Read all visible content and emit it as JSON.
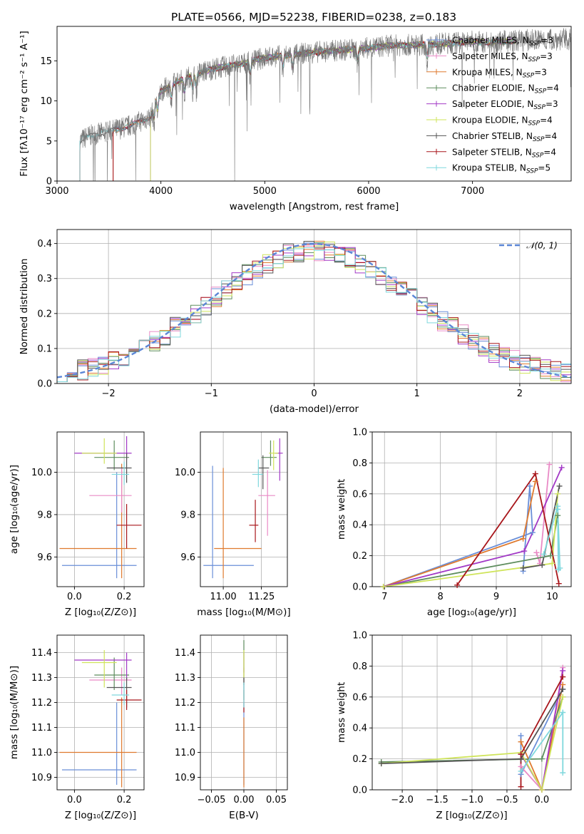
{
  "figure_title": "PLATE=0566, MJD=52238, FIBERID=0238, z=0.183",
  "colors": {
    "Chabrier MILES": "#6a8fd8",
    "Salpeter MILES": "#e98ac6",
    "Kroupa MILES": "#df7a2e",
    "Chabrier ELODIE": "#5e8d5e",
    "Salpeter ELODIE": "#a239c6",
    "Kroupa ELODIE": "#cfe45a",
    "Chabrier STELIB": "#555555",
    "Salpeter STELIB": "#a8161b",
    "Kroupa STELIB": "#7fd8dd",
    "data": "#777777",
    "normal": "#5b86d6"
  },
  "legend": [
    {
      "label": "Chabrier MILES, N",
      "sub": "SSP",
      "tail": "=3",
      "key": "Chabrier MILES"
    },
    {
      "label": "Salpeter MILES, N",
      "sub": "SSP",
      "tail": "=3",
      "key": "Salpeter MILES"
    },
    {
      "label": "Kroupa MILES, N",
      "sub": "SSP",
      "tail": "=3",
      "key": "Kroupa MILES"
    },
    {
      "label": "Chabrier ELODIE, N",
      "sub": "SSP",
      "tail": "=4",
      "key": "Chabrier ELODIE"
    },
    {
      "label": "Salpeter ELODIE, N",
      "sub": "SSP",
      "tail": "=3",
      "key": "Salpeter ELODIE"
    },
    {
      "label": "Kroupa ELODIE, N",
      "sub": "SSP",
      "tail": "=4",
      "key": "Kroupa ELODIE"
    },
    {
      "label": "Chabrier STELIB, N",
      "sub": "SSP",
      "tail": "=4",
      "key": "Chabrier STELIB"
    },
    {
      "label": "Salpeter STELIB, N",
      "sub": "SSP",
      "tail": "=4",
      "key": "Salpeter STELIB"
    },
    {
      "label": "Kroupa STELIB, N",
      "sub": "SSP",
      "tail": "=5",
      "key": "Kroupa STELIB"
    }
  ],
  "chart_data": [
    {
      "type": "line",
      "id": "spectrum",
      "xlabel": "wavelength [Angstrom, rest frame]",
      "ylabel": "Flux [fλ10⁻¹⁷ erg cm⁻² s⁻¹ A⁻¹]",
      "xlim": [
        3000,
        7950
      ],
      "ylim": [
        0,
        19.3
      ],
      "xticks": [
        3000,
        4000,
        5000,
        6000,
        7000
      ],
      "yticks": [
        0,
        5,
        10,
        15
      ],
      "continuum": {
        "x": [
          3220,
          3300,
          3500,
          3700,
          3900,
          3950,
          4000,
          4100,
          4300,
          4500,
          4800,
          5000,
          5200,
          5500,
          5800,
          6000,
          6200,
          6500,
          6800,
          7000,
          7200,
          7400,
          7600,
          7950
        ],
        "y": [
          5.0,
          5.6,
          6.2,
          6.9,
          8.0,
          10.0,
          11.2,
          12.0,
          13.2,
          14.0,
          14.7,
          15.4,
          15.7,
          16.1,
          16.4,
          16.6,
          16.9,
          17.0,
          17.2,
          17.4,
          17.3,
          17.5,
          17.6,
          17.7
        ]
      },
      "model_starts": {
        "Chabrier MILES": 3540,
        "Salpeter MILES": 3540,
        "Kroupa MILES": 3540,
        "Chabrier ELODIE": 3900,
        "Salpeter ELODIE": 3900,
        "Kroupa ELODIE": 3900,
        "Chabrier STELIB": 3220,
        "Salpeter STELIB": 3540,
        "Kroupa STELIB": 3220
      },
      "model_end": 7420
    },
    {
      "type": "step",
      "id": "residuals",
      "xlabel": "(data-model)/error",
      "ylabel": "Normed distribution",
      "xlim": [
        -2.5,
        2.5
      ],
      "ylim": [
        0,
        0.44
      ],
      "xticks": [
        -2,
        -1,
        0,
        1,
        2
      ],
      "xtick_labels": [
        "−2",
        "−1",
        "0",
        "1",
        "2"
      ],
      "yticks": [
        0.0,
        0.1,
        0.2,
        0.3,
        0.4
      ],
      "reference": {
        "label": "𝒩(0, 1)",
        "mean": 0,
        "sigma": 1
      },
      "bin_width": 0.1
    },
    {
      "type": "scatter",
      "id": "age-vs-Z",
      "xlabel": "Z [log₁₀(Z/Z⊙)]",
      "ylabel": "age  [log₁₀(age/yr)]",
      "xlim": [
        -0.07,
        0.28
      ],
      "ylim": [
        9.46,
        10.19
      ],
      "xticks": [
        0.0,
        0.2
      ],
      "yticks": [
        9.6,
        9.8,
        10.0
      ],
      "points": [
        {
          "model": "Chabrier MILES",
          "x": 0.17,
          "xerr": [
            0.22,
            0.08
          ],
          "y": 9.56,
          "yerr": [
            0.06,
            0.44
          ]
        },
        {
          "model": "Kroupa MILES",
          "x": 0.19,
          "xerr": [
            0.25,
            0.06
          ],
          "y": 9.64,
          "yerr": [
            0.14,
            0.4
          ]
        },
        {
          "model": "Salpeter MILES",
          "x": 0.19,
          "xerr": [
            0.13,
            0.04
          ],
          "y": 9.89,
          "yerr": [
            0.08,
            0.13
          ]
        },
        {
          "model": "Chabrier ELODIE",
          "x": 0.16,
          "xerr": [
            0.08,
            0.06
          ],
          "y": 10.07,
          "yerr": [
            0.06,
            0.08
          ]
        },
        {
          "model": "Salpeter ELODIE",
          "x": 0.21,
          "xerr": [
            0.21,
            0.02
          ],
          "y": 10.09,
          "yerr": [
            0.03,
            0.08
          ]
        },
        {
          "model": "Kroupa ELODIE",
          "x": 0.12,
          "xerr": [
            0.09,
            0.05
          ],
          "y": 10.09,
          "yerr": [
            0.05,
            0.07
          ]
        },
        {
          "model": "Chabrier STELIB",
          "x": 0.21,
          "xerr": [
            0.08,
            0.02
          ],
          "y": 10.02,
          "yerr": [
            0.07,
            0.07
          ]
        },
        {
          "model": "Salpeter STELIB",
          "x": 0.21,
          "xerr": [
            0.04,
            0.06
          ],
          "y": 9.75,
          "yerr": [
            0.11,
            0.1
          ]
        },
        {
          "model": "Kroupa STELIB",
          "x": 0.2,
          "xerr": [
            0.05,
            0.02
          ],
          "y": 9.99,
          "yerr": [
            0.05,
            0.06
          ]
        }
      ]
    },
    {
      "type": "scatter",
      "id": "age-vs-mass",
      "xlabel": "mass [log₁₀(M/M⊙)]",
      "ylabel": "",
      "xlim": [
        10.85,
        11.42
      ],
      "ylim": [
        9.46,
        10.19
      ],
      "xticks": [
        11.0,
        11.25
      ],
      "yticks": [
        9.6,
        9.8,
        10.0
      ],
      "points": [
        {
          "model": "Chabrier MILES",
          "x": 10.93,
          "xerr": [
            0.06,
            0.27
          ],
          "y": 9.56,
          "yerr": [
            0.06,
            0.47
          ]
        },
        {
          "model": "Kroupa MILES",
          "x": 11.0,
          "xerr": [
            0.06,
            0.25
          ],
          "y": 9.64,
          "yerr": [
            0.14,
            0.38
          ]
        },
        {
          "model": "Salpeter MILES",
          "x": 11.29,
          "xerr": [
            0.06,
            0.05
          ],
          "y": 9.89,
          "yerr": [
            0.19,
            0.12
          ]
        },
        {
          "model": "Chabrier ELODIE",
          "x": 11.31,
          "xerr": [
            0.06,
            0.04
          ],
          "y": 10.07,
          "yerr": [
            0.04,
            0.08
          ]
        },
        {
          "model": "Salpeter ELODIE",
          "x": 11.37,
          "xerr": [
            0.03,
            0.02
          ],
          "y": 10.09,
          "yerr": [
            0.13,
            0.07
          ]
        },
        {
          "model": "Kroupa ELODIE",
          "x": 11.33,
          "xerr": [
            0.03,
            0.03
          ],
          "y": 10.09,
          "yerr": [
            0.08,
            0.06
          ]
        },
        {
          "model": "Chabrier STELIB",
          "x": 11.26,
          "xerr": [
            0.03,
            0.04
          ],
          "y": 10.02,
          "yerr": [
            0.1,
            0.06
          ]
        },
        {
          "model": "Salpeter STELIB",
          "x": 11.21,
          "xerr": [
            0.04,
            0.02
          ],
          "y": 9.75,
          "yerr": [
            0.08,
            0.12
          ]
        },
        {
          "model": "Kroupa STELIB",
          "x": 11.23,
          "xerr": [
            0.04,
            0.03
          ],
          "y": 9.99,
          "yerr": [
            0.06,
            0.07
          ]
        }
      ]
    },
    {
      "type": "line",
      "id": "weight-vs-age",
      "xlabel": "age  [log₁₀(age/yr)]",
      "ylabel": "mass weight",
      "xlim": [
        6.78,
        10.34
      ],
      "ylim": [
        0,
        1.0
      ],
      "xticks": [
        7,
        8,
        9,
        10
      ],
      "yticks": [
        0.0,
        0.2,
        0.4,
        0.6,
        0.8,
        1.0
      ],
      "series": [
        {
          "model": "Chabrier MILES",
          "x": [
            9.48,
            9.6,
            9.65,
            6.98
          ],
          "y": [
            0.1,
            0.65,
            0.35,
            0.0
          ]
        },
        {
          "model": "Kroupa MILES",
          "x": [
            9.7,
            9.48,
            6.98
          ],
          "y": [
            0.68,
            0.31,
            0.0
          ]
        },
        {
          "model": "Salpeter MILES",
          "x": [
            9.95,
            9.78,
            9.72
          ],
          "y": [
            0.79,
            0.15,
            0.22
          ]
        },
        {
          "model": "Chabrier ELODIE",
          "x": [
            10.1,
            9.97,
            6.98
          ],
          "y": [
            0.46,
            0.2,
            0.0
          ]
        },
        {
          "model": "Salpeter ELODIE",
          "x": [
            10.17,
            9.5,
            6.98
          ],
          "y": [
            0.77,
            0.23,
            0.0
          ]
        },
        {
          "model": "Kroupa ELODIE",
          "x": [
            10.1,
            10.0,
            6.98
          ],
          "y": [
            0.6,
            0.15,
            0.0
          ]
        },
        {
          "model": "Chabrier STELIB",
          "x": [
            9.48,
            9.82,
            10.13
          ],
          "y": [
            0.12,
            0.14,
            0.65
          ]
        },
        {
          "model": "Salpeter STELIB",
          "x": [
            8.3,
            9.7,
            10.12
          ],
          "y": [
            0.01,
            0.73,
            0.02
          ]
        },
        {
          "model": "Kroupa STELIB",
          "x": [
            9.85,
            10.1,
            10.11,
            10.1,
            10.14
          ],
          "y": [
            0.21,
            0.52,
            0.11,
            0.5,
            0.12
          ]
        }
      ]
    },
    {
      "type": "scatter",
      "id": "mass-vs-Z",
      "xlabel": "Z [log₁₀(Z/Z⊙)]",
      "ylabel": "mass [log₁₀(M/M⊙)]",
      "xlim": [
        -0.07,
        0.28
      ],
      "ylim": [
        10.85,
        11.47
      ],
      "xticks": [
        0.0,
        0.2
      ],
      "yticks": [
        10.9,
        11.0,
        11.1,
        11.2,
        11.3,
        11.4
      ],
      "points": [
        {
          "model": "Chabrier MILES",
          "x": 0.17,
          "xerr": [
            0.22,
            0.08
          ],
          "y": 10.93,
          "yerr": [
            0.06,
            0.27
          ]
        },
        {
          "model": "Kroupa MILES",
          "x": 0.19,
          "xerr": [
            0.25,
            0.06
          ],
          "y": 11.0,
          "yerr": [
            0.14,
            0.22
          ]
        },
        {
          "model": "Salpeter MILES",
          "x": 0.19,
          "xerr": [
            0.13,
            0.04
          ],
          "y": 11.29,
          "yerr": [
            0.06,
            0.05
          ]
        },
        {
          "model": "Chabrier ELODIE",
          "x": 0.16,
          "xerr": [
            0.08,
            0.06
          ],
          "y": 11.31,
          "yerr": [
            0.06,
            0.07
          ]
        },
        {
          "model": "Salpeter ELODIE",
          "x": 0.21,
          "xerr": [
            0.21,
            0.02
          ],
          "y": 11.37,
          "yerr": [
            0.08,
            0.03
          ]
        },
        {
          "model": "Kroupa ELODIE",
          "x": 0.12,
          "xerr": [
            0.09,
            0.05
          ],
          "y": 11.36,
          "yerr": [
            0.1,
            0.05
          ]
        },
        {
          "model": "Chabrier STELIB",
          "x": 0.21,
          "xerr": [
            0.08,
            0.02
          ],
          "y": 11.26,
          "yerr": [
            0.08,
            0.04
          ]
        },
        {
          "model": "Salpeter STELIB",
          "x": 0.21,
          "xerr": [
            0.04,
            0.06
          ],
          "y": 11.21,
          "yerr": [
            0.04,
            0.04
          ]
        },
        {
          "model": "Kroupa STELIB",
          "x": 0.2,
          "xerr": [
            0.05,
            0.02
          ],
          "y": 11.23,
          "yerr": [
            0.04,
            0.05
          ]
        }
      ]
    },
    {
      "type": "scatter",
      "id": "mass-vs-ebv",
      "xlabel": "E(B-V)",
      "ylabel": "",
      "xlim": [
        -0.067,
        0.067
      ],
      "ylim": [
        10.85,
        11.47
      ],
      "xticks": [
        -0.05,
        0.0,
        0.05
      ],
      "xtick_labels": [
        "−0.05",
        "0.00",
        "0.05"
      ],
      "yticks": [
        10.9,
        11.0,
        11.1,
        11.2,
        11.3,
        11.4
      ],
      "points": [
        {
          "model": "Chabrier MILES",
          "x": 0.0,
          "y": 10.93,
          "yerr": [
            0.06,
            0.27
          ]
        },
        {
          "model": "Kroupa MILES",
          "x": 0.0,
          "y": 11.0,
          "yerr": [
            0.14,
            0.14
          ]
        },
        {
          "model": "Salpeter MILES",
          "x": 0.0,
          "y": 11.29,
          "yerr": [
            0.04,
            0.05
          ]
        },
        {
          "model": "Chabrier ELODIE",
          "x": 0.0,
          "y": 11.31,
          "yerr": [
            0.04,
            0.14
          ]
        },
        {
          "model": "Salpeter ELODIE",
          "x": 0.0,
          "y": 11.37,
          "yerr": [
            0.05,
            0.03
          ]
        },
        {
          "model": "Kroupa ELODIE",
          "x": 0.0,
          "y": 11.36,
          "yerr": [
            0.06,
            0.05
          ]
        },
        {
          "model": "Chabrier STELIB",
          "x": 0.0,
          "y": 11.26,
          "yerr": [
            0.05,
            0.04
          ]
        },
        {
          "model": "Salpeter STELIB",
          "x": 0.0,
          "y": 11.21,
          "yerr": [
            0.05,
            0.04
          ]
        },
        {
          "model": "Kroupa STELIB",
          "x": 0.0,
          "y": 11.23,
          "yerr": [
            0.05,
            0.05
          ]
        }
      ]
    },
    {
      "type": "line",
      "id": "weight-vs-Z",
      "xlabel": "Z [log₁₀(Z/Z⊙)]",
      "ylabel": "mass weight",
      "xlim": [
        -2.43,
        0.42
      ],
      "ylim": [
        0,
        1.0
      ],
      "xticks": [
        -2.0,
        -1.5,
        -1.0,
        -0.5,
        0.0
      ],
      "xtick_labels": [
        "−2.0",
        "−1.5",
        "−1.0",
        "−0.5",
        "0.0"
      ],
      "yticks": [
        0.0,
        0.2,
        0.4,
        0.6,
        0.8,
        1.0
      ],
      "series": [
        {
          "model": "Chabrier MILES",
          "x": [
            -0.3,
            -0.3,
            0.3
          ],
          "y": [
            0.35,
            0.1,
            0.65
          ]
        },
        {
          "model": "Kroupa MILES",
          "x": [
            -0.3,
            0.0,
            0.3
          ],
          "y": [
            0.31,
            0.0,
            0.68
          ]
        },
        {
          "model": "Salpeter MILES",
          "x": [
            -0.3,
            0.0,
            0.3
          ],
          "y": [
            0.15,
            0.0,
            0.79
          ]
        },
        {
          "model": "Chabrier ELODIE",
          "x": [
            -2.3,
            0.0,
            0.3
          ],
          "y": [
            0.18,
            0.2,
            0.6
          ]
        },
        {
          "model": "Salpeter ELODIE",
          "x": [
            -0.3,
            0.0,
            0.3
          ],
          "y": [
            0.23,
            0.0,
            0.77
          ]
        },
        {
          "model": "Kroupa ELODIE",
          "x": [
            -2.3,
            -0.3,
            0.0,
            0.3
          ],
          "y": [
            0.17,
            0.24,
            0.0,
            0.6
          ]
        },
        {
          "model": "Chabrier STELIB",
          "x": [
            -2.3,
            -0.3,
            0.3
          ],
          "y": [
            0.17,
            0.2,
            0.65
          ]
        },
        {
          "model": "Salpeter STELIB",
          "x": [
            -0.3,
            -0.3,
            0.3
          ],
          "y": [
            0.02,
            0.23,
            0.73
          ]
        },
        {
          "model": "Kroupa STELIB",
          "x": [
            -0.3,
            0.3,
            0.3
          ],
          "y": [
            0.12,
            0.5,
            0.11
          ]
        }
      ]
    }
  ]
}
